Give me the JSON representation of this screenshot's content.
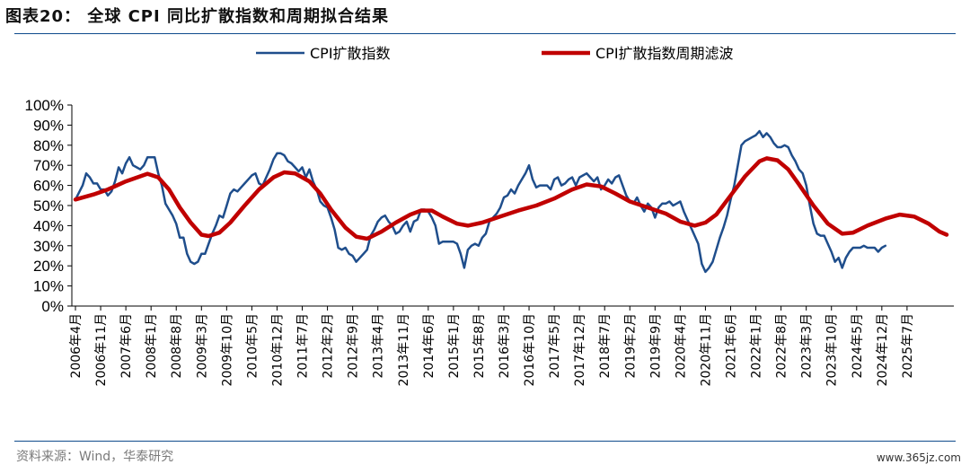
{
  "figure": {
    "title": "图表20： 全球 CPI 同比扩散指数和周期拟合结果",
    "source": "资料来源：Wind，华泰研究",
    "watermark": "www.365jz.com"
  },
  "chart_data": {
    "type": "line",
    "title": "",
    "xlabel": "",
    "ylabel": "",
    "ylim": [
      0,
      100
    ],
    "y_ticks": [
      "0%",
      "10%",
      "20%",
      "30%",
      "40%",
      "50%",
      "60%",
      "70%",
      "80%",
      "90%",
      "100%"
    ],
    "x_range": [
      "2006-04",
      "2025-10"
    ],
    "x_ticks": [
      "2006年4月",
      "2006年11月",
      "2007年6月",
      "2008年1月",
      "2008年8月",
      "2009年3月",
      "2009年10月",
      "2010年5月",
      "2010年12月",
      "2011年7月",
      "2012年2月",
      "2012年9月",
      "2013年4月",
      "2013年11月",
      "2014年6月",
      "2015年1月",
      "2015年8月",
      "2016年3月",
      "2016年10月",
      "2017年5月",
      "2017年12月",
      "2018年7月",
      "2019年2月",
      "2019年9月",
      "2020年4月",
      "2020年11月",
      "2021年6月",
      "2022年1月",
      "2022年8月",
      "2023年3月",
      "2023年10月",
      "2024年5月",
      "2024年12月",
      "2025年7月"
    ],
    "legend_position": "top",
    "grid": false,
    "series": [
      {
        "name": "CPI扩散指数",
        "color": "#1f4e8c",
        "points": [
          [
            "2006-04",
            53
          ],
          [
            "2006-06",
            60
          ],
          [
            "2006-07",
            66
          ],
          [
            "2006-08",
            64
          ],
          [
            "2006-09",
            61
          ],
          [
            "2006-10",
            61
          ],
          [
            "2006-11",
            58
          ],
          [
            "2006-12",
            58
          ],
          [
            "2007-01",
            55
          ],
          [
            "2007-02",
            57
          ],
          [
            "2007-03",
            62
          ],
          [
            "2007-04",
            69
          ],
          [
            "2007-05",
            66
          ],
          [
            "2007-06",
            71
          ],
          [
            "2007-07",
            74
          ],
          [
            "2007-08",
            70
          ],
          [
            "2007-09",
            69
          ],
          [
            "2007-10",
            68
          ],
          [
            "2007-11",
            70
          ],
          [
            "2007-12",
            74
          ],
          [
            "2008-01",
            74
          ],
          [
            "2008-02",
            74
          ],
          [
            "2008-03",
            66
          ],
          [
            "2008-04",
            60
          ],
          [
            "2008-05",
            51
          ],
          [
            "2008-06",
            48
          ],
          [
            "2008-07",
            45
          ],
          [
            "2008-08",
            41
          ],
          [
            "2008-09",
            34
          ],
          [
            "2008-10",
            34
          ],
          [
            "2008-11",
            26
          ],
          [
            "2008-12",
            22
          ],
          [
            "2009-01",
            21
          ],
          [
            "2009-02",
            22
          ],
          [
            "2009-03",
            26
          ],
          [
            "2009-04",
            26
          ],
          [
            "2009-05",
            31
          ],
          [
            "2009-06",
            36
          ],
          [
            "2009-07",
            40
          ],
          [
            "2009-08",
            45
          ],
          [
            "2009-09",
            44
          ],
          [
            "2009-10",
            50
          ],
          [
            "2009-11",
            56
          ],
          [
            "2009-12",
            58
          ],
          [
            "2010-01",
            57
          ],
          [
            "2010-02",
            59
          ],
          [
            "2010-03",
            61
          ],
          [
            "2010-04",
            63
          ],
          [
            "2010-05",
            65
          ],
          [
            "2010-06",
            66
          ],
          [
            "2010-07",
            61
          ],
          [
            "2010-08",
            60
          ],
          [
            "2010-09",
            64
          ],
          [
            "2010-10",
            68
          ],
          [
            "2010-11",
            73
          ],
          [
            "2010-12",
            76
          ],
          [
            "2011-01",
            76
          ],
          [
            "2011-02",
            75
          ],
          [
            "2011-03",
            72
          ],
          [
            "2011-04",
            71
          ],
          [
            "2011-05",
            69
          ],
          [
            "2011-06",
            67
          ],
          [
            "2011-07",
            69
          ],
          [
            "2011-08",
            64
          ],
          [
            "2011-09",
            68
          ],
          [
            "2011-10",
            62
          ],
          [
            "2011-11",
            58
          ],
          [
            "2011-12",
            52
          ],
          [
            "2012-01",
            50
          ],
          [
            "2012-02",
            49
          ],
          [
            "2012-03",
            44
          ],
          [
            "2012-04",
            38
          ],
          [
            "2012-05",
            29
          ],
          [
            "2012-06",
            28
          ],
          [
            "2012-07",
            29
          ],
          [
            "2012-08",
            26
          ],
          [
            "2012-09",
            25
          ],
          [
            "2012-10",
            22
          ],
          [
            "2012-11",
            24
          ],
          [
            "2012-12",
            26
          ],
          [
            "2013-01",
            28
          ],
          [
            "2013-02",
            35
          ],
          [
            "2013-03",
            38
          ],
          [
            "2013-04",
            42
          ],
          [
            "2013-05",
            44
          ],
          [
            "2013-06",
            45
          ],
          [
            "2013-07",
            42
          ],
          [
            "2013-08",
            40
          ],
          [
            "2013-09",
            36
          ],
          [
            "2013-10",
            37
          ],
          [
            "2013-11",
            40
          ],
          [
            "2013-12",
            42
          ],
          [
            "2014-01",
            37
          ],
          [
            "2014-02",
            42
          ],
          [
            "2014-03",
            43
          ],
          [
            "2014-04",
            48
          ],
          [
            "2014-05",
            48
          ],
          [
            "2014-06",
            47
          ],
          [
            "2014-07",
            44
          ],
          [
            "2014-08",
            40
          ],
          [
            "2014-09",
            31
          ],
          [
            "2014-10",
            32
          ],
          [
            "2014-11",
            32
          ],
          [
            "2014-12",
            32
          ],
          [
            "2015-01",
            32
          ],
          [
            "2015-02",
            31
          ],
          [
            "2015-03",
            26
          ],
          [
            "2015-04",
            19
          ],
          [
            "2015-05",
            28
          ],
          [
            "2015-06",
            30
          ],
          [
            "2015-07",
            31
          ],
          [
            "2015-08",
            30
          ],
          [
            "2015-09",
            34
          ],
          [
            "2015-10",
            36
          ],
          [
            "2015-11",
            42
          ],
          [
            "2015-12",
            44
          ],
          [
            "2016-01",
            46
          ],
          [
            "2016-02",
            49
          ],
          [
            "2016-03",
            54
          ],
          [
            "2016-04",
            55
          ],
          [
            "2016-05",
            58
          ],
          [
            "2016-06",
            56
          ],
          [
            "2016-07",
            60
          ],
          [
            "2016-08",
            63
          ],
          [
            "2016-09",
            66
          ],
          [
            "2016-10",
            70
          ],
          [
            "2016-11",
            63
          ],
          [
            "2016-12",
            59
          ],
          [
            "2017-01",
            60
          ],
          [
            "2017-02",
            60
          ],
          [
            "2017-03",
            60
          ],
          [
            "2017-04",
            58
          ],
          [
            "2017-05",
            63
          ],
          [
            "2017-06",
            64
          ],
          [
            "2017-07",
            60
          ],
          [
            "2017-08",
            61
          ],
          [
            "2017-09",
            63
          ],
          [
            "2017-10",
            64
          ],
          [
            "2017-11",
            60
          ],
          [
            "2017-12",
            64
          ],
          [
            "2018-01",
            65
          ],
          [
            "2018-02",
            66
          ],
          [
            "2018-03",
            64
          ],
          [
            "2018-04",
            62
          ],
          [
            "2018-05",
            64
          ],
          [
            "2018-06",
            58
          ],
          [
            "2018-07",
            60
          ],
          [
            "2018-08",
            63
          ],
          [
            "2018-09",
            61
          ],
          [
            "2018-10",
            64
          ],
          [
            "2018-11",
            65
          ],
          [
            "2018-12",
            60
          ],
          [
            "2019-01",
            55
          ],
          [
            "2019-02",
            52
          ],
          [
            "2019-03",
            51
          ],
          [
            "2019-04",
            54
          ],
          [
            "2019-05",
            50
          ],
          [
            "2019-06",
            47
          ],
          [
            "2019-07",
            51
          ],
          [
            "2019-08",
            49
          ],
          [
            "2019-09",
            44
          ],
          [
            "2019-10",
            49
          ],
          [
            "2019-11",
            51
          ],
          [
            "2019-12",
            51
          ],
          [
            "2020-01",
            52
          ],
          [
            "2020-02",
            50
          ],
          [
            "2020-03",
            51
          ],
          [
            "2020-04",
            52
          ],
          [
            "2020-05",
            47
          ],
          [
            "2020-06",
            43
          ],
          [
            "2020-07",
            39
          ],
          [
            "2020-08",
            35
          ],
          [
            "2020-09",
            31
          ],
          [
            "2020-10",
            21
          ],
          [
            "2020-11",
            17
          ],
          [
            "2020-12",
            19
          ],
          [
            "2021-01",
            22
          ],
          [
            "2021-02",
            28
          ],
          [
            "2021-03",
            34
          ],
          [
            "2021-04",
            39
          ],
          [
            "2021-05",
            45
          ],
          [
            "2021-06",
            53
          ],
          [
            "2021-07",
            60
          ],
          [
            "2021-08",
            70
          ],
          [
            "2021-09",
            80
          ],
          [
            "2021-10",
            82
          ],
          [
            "2021-11",
            83
          ],
          [
            "2021-12",
            84
          ],
          [
            "2022-01",
            85
          ],
          [
            "2022-02",
            87
          ],
          [
            "2022-03",
            84
          ],
          [
            "2022-04",
            86
          ],
          [
            "2022-05",
            84
          ],
          [
            "2022-06",
            81
          ],
          [
            "2022-07",
            79
          ],
          [
            "2022-08",
            79
          ],
          [
            "2022-09",
            80
          ],
          [
            "2022-10",
            79
          ],
          [
            "2022-11",
            75
          ],
          [
            "2022-12",
            72
          ],
          [
            "2023-01",
            68
          ],
          [
            "2023-02",
            66
          ],
          [
            "2023-03",
            60
          ],
          [
            "2023-04",
            50
          ],
          [
            "2023-05",
            41
          ],
          [
            "2023-06",
            36
          ],
          [
            "2023-07",
            35
          ],
          [
            "2023-08",
            35
          ],
          [
            "2023-09",
            31
          ],
          [
            "2023-10",
            27
          ],
          [
            "2023-11",
            22
          ],
          [
            "2023-12",
            24
          ],
          [
            "2024-01",
            19
          ],
          [
            "2024-02",
            24
          ],
          [
            "2024-03",
            27
          ],
          [
            "2024-04",
            29
          ],
          [
            "2024-05",
            29
          ],
          [
            "2024-06",
            29
          ],
          [
            "2024-07",
            30
          ],
          [
            "2024-08",
            29
          ],
          [
            "2024-09",
            29
          ],
          [
            "2024-10",
            29
          ],
          [
            "2024-11",
            27
          ],
          [
            "2024-12",
            29
          ],
          [
            "2025-01",
            30
          ]
        ]
      },
      {
        "name": "CPI扩散指数周期滤波",
        "color": "#c00000",
        "points": [
          [
            "2006-04",
            53
          ],
          [
            "2006-09",
            55.5
          ],
          [
            "2007-01",
            58
          ],
          [
            "2007-06",
            62
          ],
          [
            "2007-12",
            65.8
          ],
          [
            "2008-03",
            64
          ],
          [
            "2008-06",
            58
          ],
          [
            "2008-09",
            49
          ],
          [
            "2008-12",
            41.5
          ],
          [
            "2009-03",
            35.5
          ],
          [
            "2009-05",
            34.8
          ],
          [
            "2009-08",
            36.5
          ],
          [
            "2009-11",
            41.5
          ],
          [
            "2010-03",
            50
          ],
          [
            "2010-07",
            58
          ],
          [
            "2010-11",
            64
          ],
          [
            "2011-02",
            66.5
          ],
          [
            "2011-05",
            66
          ],
          [
            "2011-09",
            62
          ],
          [
            "2011-12",
            56
          ],
          [
            "2012-03",
            48
          ],
          [
            "2012-07",
            39
          ],
          [
            "2012-10",
            34.5
          ],
          [
            "2013-01",
            33.5
          ],
          [
            "2013-05",
            37
          ],
          [
            "2013-09",
            41.5
          ],
          [
            "2014-01",
            45.5
          ],
          [
            "2014-04",
            47.5
          ],
          [
            "2014-07",
            47.5
          ],
          [
            "2014-10",
            44.5
          ],
          [
            "2015-02",
            41
          ],
          [
            "2015-05",
            40
          ],
          [
            "2015-09",
            41.5
          ],
          [
            "2016-02",
            44.5
          ],
          [
            "2016-07",
            47.5
          ],
          [
            "2016-12",
            50
          ],
          [
            "2017-05",
            53.5
          ],
          [
            "2017-10",
            58
          ],
          [
            "2018-02",
            60.5
          ],
          [
            "2018-06",
            59.5
          ],
          [
            "2018-10",
            56
          ],
          [
            "2019-02",
            52
          ],
          [
            "2019-07",
            49
          ],
          [
            "2019-12",
            46
          ],
          [
            "2020-04",
            42
          ],
          [
            "2020-08",
            40
          ],
          [
            "2020-11",
            41.5
          ],
          [
            "2021-02",
            45.5
          ],
          [
            "2021-06",
            55
          ],
          [
            "2021-10",
            64.5
          ],
          [
            "2022-02",
            72
          ],
          [
            "2022-04",
            73.5
          ],
          [
            "2022-07",
            72.5
          ],
          [
            "2022-10",
            68
          ],
          [
            "2023-01",
            60.5
          ],
          [
            "2023-05",
            50
          ],
          [
            "2023-09",
            41
          ],
          [
            "2024-01",
            36
          ],
          [
            "2024-04",
            36.5
          ],
          [
            "2024-08",
            40
          ],
          [
            "2025-01",
            43.5
          ],
          [
            "2025-05",
            45.5
          ],
          [
            "2025-09",
            44.5
          ],
          [
            "2026-01",
            41
          ],
          [
            "2026-04",
            37
          ],
          [
            "2026-06",
            35.5
          ]
        ]
      }
    ]
  }
}
